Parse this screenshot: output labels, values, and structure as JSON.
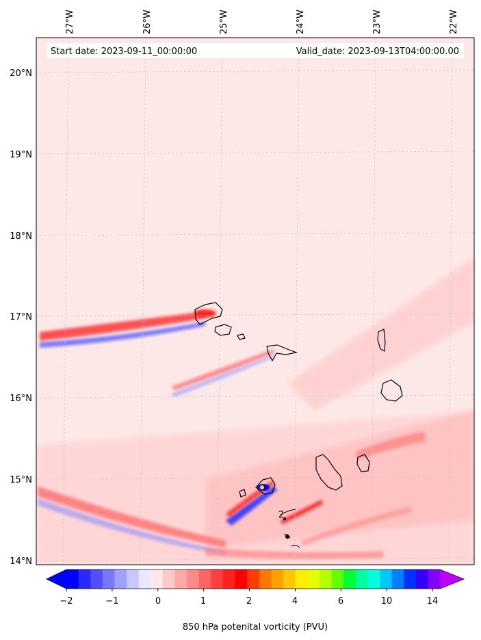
{
  "header": {
    "start_date": "Start date: 2023-09-11_00:00:00",
    "valid_date": "Valid_date: 2023-09-13T04:00:00.00"
  },
  "map": {
    "lon_labels": [
      "27°W",
      "26°W",
      "25°W",
      "24°W",
      "23°W",
      "22°W"
    ],
    "lat_labels": [
      "20°N",
      "19°N",
      "18°N",
      "17°N",
      "16°N",
      "15°N",
      "14°N"
    ],
    "background_color": "#fde8e8",
    "contour_label": "2"
  },
  "colorbar": {
    "title": "850 hPa potenital vorticity (PVU)",
    "tick_labels": [
      "−2",
      "−1",
      "0",
      "1",
      "2",
      "4",
      "6",
      "10",
      "14"
    ],
    "colors": [
      "#0000ff",
      "#2828ff",
      "#5050ff",
      "#7878ff",
      "#a0a0ff",
      "#c8c8ff",
      "#e8e8ff",
      "#ffe8e8",
      "#ffc8c8",
      "#ffa8a8",
      "#ff8888",
      "#ff6464",
      "#ff4040",
      "#ff2020",
      "#ff0000",
      "#ff3c00",
      "#ff7800",
      "#ffa000",
      "#ffc800",
      "#ffee00",
      "#e6ff00",
      "#b4ff00",
      "#64ff00",
      "#00ff32",
      "#00ffa0",
      "#00ffe0",
      "#00c8ff",
      "#0080ff",
      "#0032ff",
      "#3200ff",
      "#8200ff"
    ]
  }
}
